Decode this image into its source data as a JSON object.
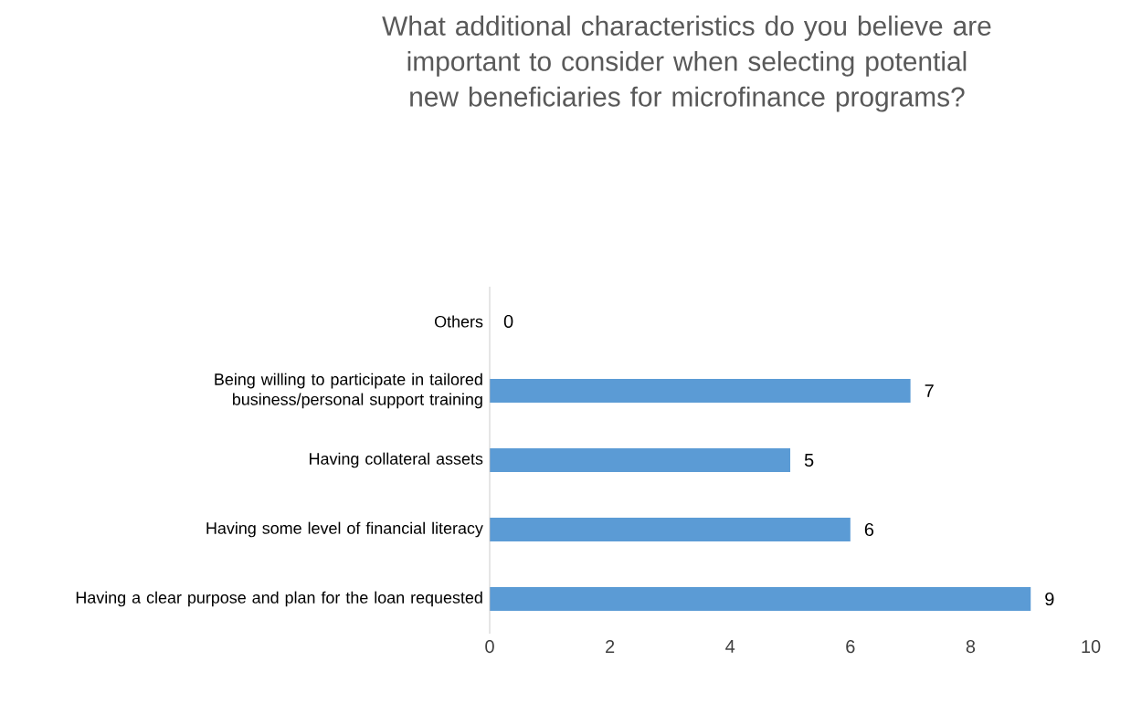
{
  "chart_data": {
    "type": "bar",
    "orientation": "horizontal",
    "title": "What additional characteristics do you believe are important to consider when selecting potential new beneficiaries for microfinance programs?",
    "categories": [
      "Others",
      "Being willing to participate in tailored business/personal support training",
      "Having collateral assets",
      "Having some level of financial literacy",
      "Having a clear purpose and plan for the loan requested"
    ],
    "values": [
      0,
      7,
      5,
      6,
      9
    ],
    "color": "#5b9bd5",
    "data_labels": true,
    "xlim": [
      0,
      10
    ],
    "xticks": [
      0,
      2,
      4,
      6,
      8,
      10
    ],
    "grid": false
  }
}
